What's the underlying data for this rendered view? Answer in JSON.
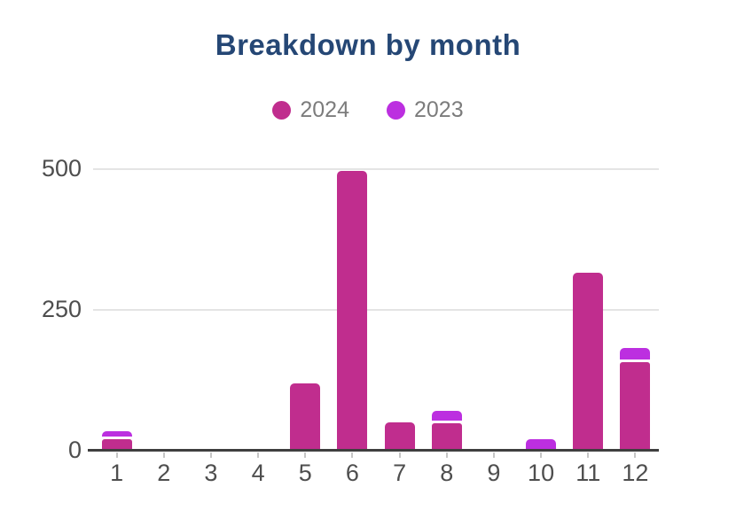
{
  "chart_data": {
    "type": "bar",
    "stacked": true,
    "title": "Breakdown by month",
    "xlabel": "",
    "ylabel": "",
    "categories": [
      "1",
      "2",
      "3",
      "4",
      "5",
      "6",
      "7",
      "8",
      "9",
      "10",
      "11",
      "12"
    ],
    "series": [
      {
        "name": "2024",
        "color": "#c02d8e",
        "values": [
          20,
          0,
          0,
          0,
          120,
          497,
          50,
          49,
          0,
          0,
          315,
          157
        ]
      },
      {
        "name": "2023",
        "color": "#bc2fe0",
        "values": [
          15,
          0,
          0,
          0,
          0,
          0,
          0,
          21,
          0,
          20,
          0,
          26
        ]
      }
    ],
    "yticks": [
      0,
      250,
      500
    ],
    "ylim": [
      0,
      540
    ],
    "legend_position": "top",
    "grid": "horizontal",
    "colors": {
      "title": "#254775",
      "legend_text": "#7c7c7c",
      "axis_text": "#4e4e4e",
      "gridline": "#e4e4e4",
      "axis_line": "#3f3f3f",
      "tick": "#c6c6c6",
      "segment_gap": "#ffffff"
    }
  }
}
